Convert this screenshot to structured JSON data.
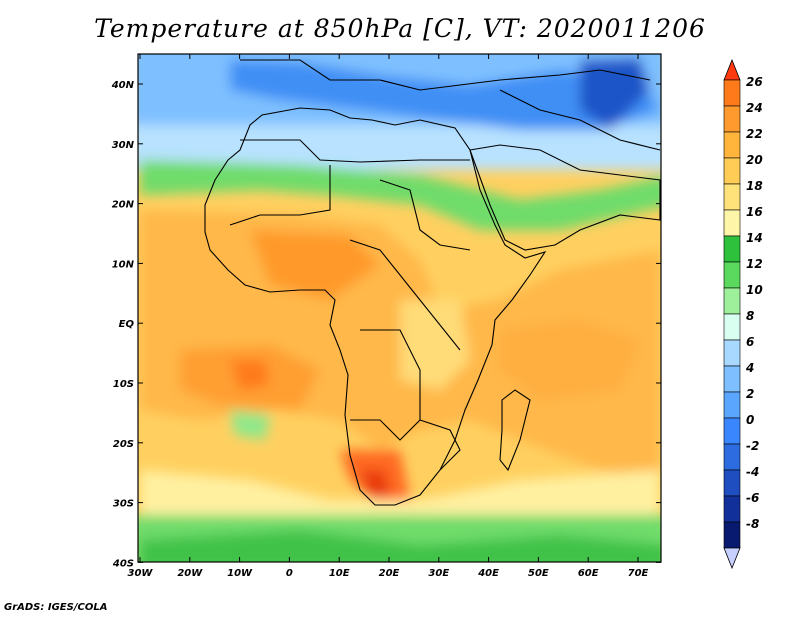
{
  "title": "Temperature at 850hPa [C], VT: 2020011206",
  "credit": "GrADS: IGES/COLA",
  "map": {
    "lon_ticks": [
      "30W",
      "20W",
      "10W",
      "0",
      "10E",
      "20E",
      "30E",
      "40E",
      "50E",
      "60E",
      "70E"
    ],
    "lat_ticks": [
      "40N",
      "30N",
      "20N",
      "10N",
      "EQ",
      "10S",
      "20S",
      "30S",
      "40S"
    ]
  },
  "colorbar": {
    "labels": [
      "26",
      "24",
      "22",
      "20",
      "18",
      "16",
      "14",
      "12",
      "10",
      "8",
      "6",
      "4",
      "2",
      "0",
      "-2",
      "-4",
      "-6",
      "-8"
    ],
    "colors": [
      "#ff3a10",
      "#ff7a1a",
      "#ff9b2e",
      "#ffb43c",
      "#ffcc55",
      "#ffe37a",
      "#fff5a8",
      "#2ec23c",
      "#5bd85e",
      "#9ff09a",
      "#d8fff0",
      "#a8d8ff",
      "#7ec0ff",
      "#5aa6ff",
      "#3a86ff",
      "#2c6be0",
      "#1e4ec0",
      "#12309a",
      "#081a70",
      "#c8d0ff"
    ]
  }
}
